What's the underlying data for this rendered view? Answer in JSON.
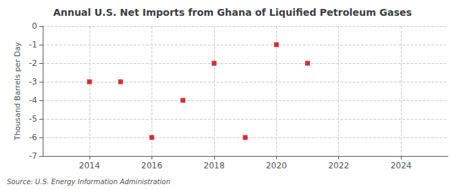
{
  "chart_data": {
    "type": "scatter",
    "title": "Annual U.S. Net Imports from Ghana of Liquified Petroleum Gases",
    "ylabel": "Thousand Barrels per Day",
    "annotations": [
      "Source: U.S. Energy Information Administration"
    ],
    "x": [
      2014,
      2015,
      2016,
      2017,
      2018,
      2019,
      2020,
      2021
    ],
    "values": [
      -3,
      -3,
      -6,
      -4,
      -2,
      -6,
      -1,
      -2
    ],
    "color": "#cc0000",
    "marker": "square",
    "xlim": [
      2012.5,
      2025.5
    ],
    "xticks": [
      2014,
      2016,
      2018,
      2020,
      2022,
      2024
    ],
    "ylim": [
      -7,
      0
    ],
    "yticks": [
      0,
      -1,
      -2,
      -3,
      -4,
      -5,
      -6,
      -7
    ],
    "grid": true
  }
}
